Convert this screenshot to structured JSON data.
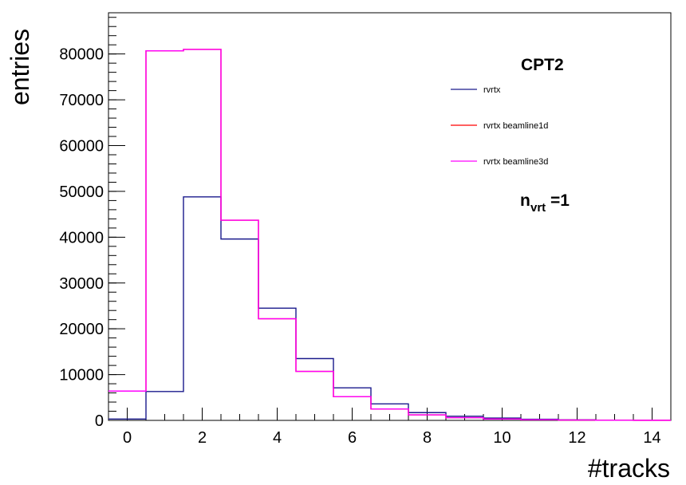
{
  "chart_data": {
    "type": "histogram",
    "xlabel": "#tracks",
    "ylabel": "entries",
    "xlim": [
      -0.5,
      14.5
    ],
    "ylim": [
      0,
      89000
    ],
    "x_ticks": [
      0,
      2,
      4,
      6,
      8,
      10,
      12,
      14
    ],
    "y_ticks": [
      0,
      10000,
      20000,
      30000,
      40000,
      50000,
      60000,
      70000,
      80000
    ],
    "grid": false,
    "legend_placement": "top-right",
    "bin_edges": [
      -0.5,
      0.5,
      1.5,
      2.5,
      3.5,
      4.5,
      5.5,
      6.5,
      7.5,
      8.5,
      9.5,
      10.5,
      11.5,
      12.5,
      13.5,
      14.5
    ],
    "series": [
      {
        "name": "rvrtx",
        "color": "#1a1a8c",
        "values": [
          300,
          6300,
          48800,
          39600,
          24500,
          13500,
          7100,
          3600,
          1700,
          900,
          500,
          250,
          120,
          60,
          30
        ]
      },
      {
        "name": "rvrtx beamline1d",
        "color": "#ff0000",
        "values": [
          6400,
          80700,
          81000,
          43700,
          22200,
          10700,
          5200,
          2500,
          1200,
          600,
          300,
          150,
          80,
          40,
          20
        ]
      },
      {
        "name": "rvrtx beamline3d",
        "color": "#ff00ff",
        "values": [
          6400,
          80700,
          81000,
          43700,
          22200,
          10700,
          5200,
          2500,
          1200,
          600,
          300,
          150,
          80,
          40,
          20
        ]
      }
    ],
    "annotations": {
      "label": "CPT2",
      "nvrt_base": "n",
      "nvrt_sub": "vrt",
      "nvrt_value": "=1"
    }
  }
}
